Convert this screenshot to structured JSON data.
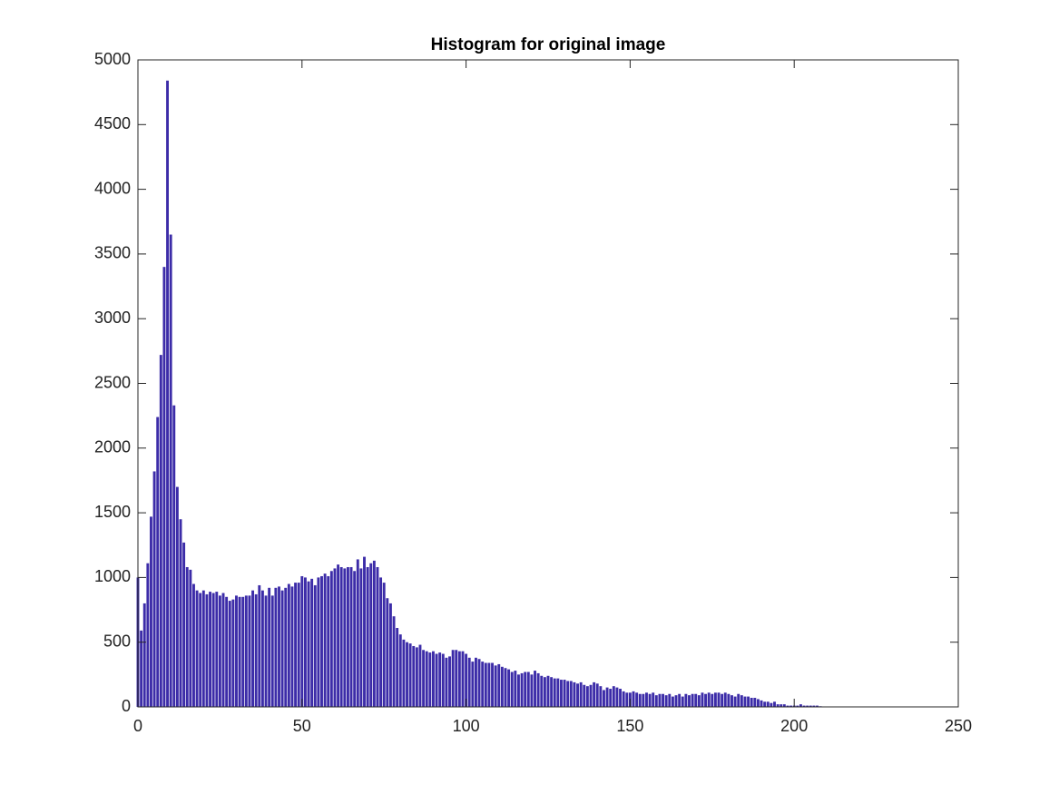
{
  "chart_data": {
    "type": "bar",
    "title": "Histogram for original image",
    "color": "#3c2ca8",
    "bar_width": 0.8,
    "x": [
      0,
      1,
      2,
      3,
      4,
      5,
      6,
      7,
      8,
      9,
      10,
      11,
      12,
      13,
      14,
      15,
      16,
      17,
      18,
      19,
      20,
      21,
      22,
      23,
      24,
      25,
      26,
      27,
      28,
      29,
      30,
      31,
      32,
      33,
      34,
      35,
      36,
      37,
      38,
      39,
      40,
      41,
      42,
      43,
      44,
      45,
      46,
      47,
      48,
      49,
      50,
      51,
      52,
      53,
      54,
      55,
      56,
      57,
      58,
      59,
      60,
      61,
      62,
      63,
      64,
      65,
      66,
      67,
      68,
      69,
      70,
      71,
      72,
      73,
      74,
      75,
      76,
      77,
      78,
      79,
      80,
      81,
      82,
      83,
      84,
      85,
      86,
      87,
      88,
      89,
      90,
      91,
      92,
      93,
      94,
      95,
      96,
      97,
      98,
      99,
      100,
      101,
      102,
      103,
      104,
      105,
      106,
      107,
      108,
      109,
      110,
      111,
      112,
      113,
      114,
      115,
      116,
      117,
      118,
      119,
      120,
      121,
      122,
      123,
      124,
      125,
      126,
      127,
      128,
      129,
      130,
      131,
      132,
      133,
      134,
      135,
      136,
      137,
      138,
      139,
      140,
      141,
      142,
      143,
      144,
      145,
      146,
      147,
      148,
      149,
      150,
      151,
      152,
      153,
      154,
      155,
      156,
      157,
      158,
      159,
      160,
      161,
      162,
      163,
      164,
      165,
      166,
      167,
      168,
      169,
      170,
      171,
      172,
      173,
      174,
      175,
      176,
      177,
      178,
      179,
      180,
      181,
      182,
      183,
      184,
      185,
      186,
      187,
      188,
      189,
      190,
      191,
      192,
      193,
      194,
      195,
      196,
      197,
      198,
      199,
      200,
      201,
      202,
      203,
      204,
      205,
      206,
      207,
      208
    ],
    "values": [
      1000,
      590,
      800,
      1110,
      1470,
      1820,
      2240,
      2720,
      3400,
      4840,
      3650,
      2330,
      1700,
      1450,
      1270,
      1080,
      1060,
      950,
      900,
      880,
      900,
      870,
      890,
      880,
      890,
      860,
      880,
      850,
      820,
      830,
      860,
      850,
      850,
      860,
      860,
      900,
      870,
      940,
      900,
      860,
      920,
      860,
      920,
      930,
      900,
      920,
      950,
      930,
      960,
      960,
      1010,
      1000,
      970,
      990,
      940,
      1000,
      1010,
      1030,
      1010,
      1050,
      1070,
      1100,
      1080,
      1070,
      1080,
      1080,
      1050,
      1140,
      1070,
      1160,
      1080,
      1110,
      1130,
      1080,
      1000,
      960,
      840,
      800,
      700,
      610,
      560,
      520,
      500,
      490,
      470,
      460,
      480,
      440,
      430,
      420,
      430,
      410,
      420,
      410,
      380,
      390,
      440,
      440,
      430,
      430,
      410,
      380,
      350,
      380,
      370,
      350,
      340,
      340,
      340,
      320,
      330,
      310,
      300,
      290,
      270,
      280,
      250,
      260,
      270,
      270,
      250,
      280,
      260,
      240,
      230,
      240,
      230,
      220,
      220,
      210,
      210,
      200,
      200,
      190,
      180,
      190,
      170,
      160,
      170,
      190,
      180,
      160,
      130,
      150,
      140,
      160,
      150,
      140,
      120,
      110,
      110,
      120,
      110,
      100,
      100,
      110,
      100,
      110,
      90,
      100,
      100,
      90,
      100,
      80,
      90,
      100,
      80,
      100,
      90,
      100,
      100,
      90,
      110,
      100,
      110,
      100,
      110,
      110,
      100,
      110,
      100,
      90,
      80,
      100,
      90,
      80,
      80,
      70,
      70,
      60,
      50,
      40,
      40,
      30,
      40,
      20,
      20,
      20,
      10,
      10,
      10,
      10,
      20,
      10,
      10,
      10,
      10,
      10,
      5
    ],
    "xlim": [
      0,
      250
    ],
    "xticks": [
      0,
      50,
      100,
      150,
      200,
      250
    ],
    "ylim": [
      0,
      5000
    ],
    "yticks": [
      0,
      500,
      1000,
      1500,
      2000,
      2500,
      3000,
      3500,
      4000,
      4500,
      5000
    ]
  }
}
